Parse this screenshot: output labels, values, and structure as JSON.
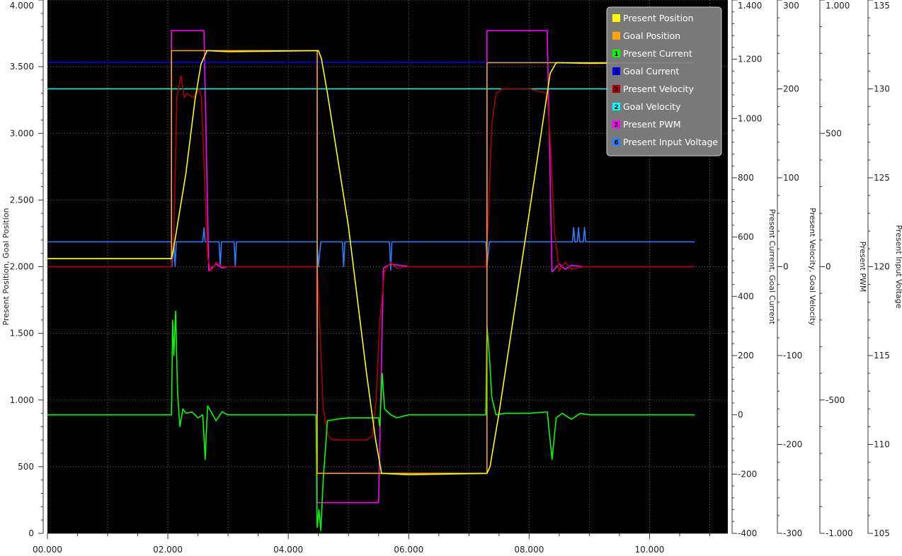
{
  "chart_data": {
    "type": "line",
    "title": "",
    "xlabel": "",
    "xlim": [
      0,
      11.3
    ],
    "x_ticks": [
      "00.000",
      "02.000",
      "04.000",
      "06.000",
      "08.000",
      "10.000"
    ],
    "x_tick_values": [
      0,
      2,
      4,
      6,
      8,
      10
    ],
    "grid": true,
    "legend_position": "top-right",
    "y_axes": [
      {
        "id": "pos",
        "label": "Present Position, Goal Position",
        "side": "left",
        "ylim": [
          0,
          4000
        ],
        "ticks": [
          "0",
          "500",
          "1.000",
          "1.500",
          "2.000",
          "2.500",
          "3.000",
          "3.500",
          "4.000"
        ],
        "tick_values": [
          0,
          500,
          1000,
          1500,
          2000,
          2500,
          3000,
          3500,
          4000
        ]
      },
      {
        "id": "cur",
        "label": "Present Current, Goal Current",
        "side": "right",
        "ylim": [
          -400,
          1400
        ],
        "ticks": [
          "-400",
          "-200",
          "0",
          "200",
          "400",
          "600",
          "800",
          "1.000",
          "1.200",
          "1.400"
        ],
        "tick_values": [
          -400,
          -200,
          0,
          200,
          400,
          600,
          800,
          1000,
          1200,
          1400
        ]
      },
      {
        "id": "vel",
        "label": "Present Velocity, Goal Velocity",
        "side": "right",
        "ylim": [
          -300,
          300
        ],
        "ticks": [
          "-300",
          "-200",
          "-100",
          "0",
          "100",
          "200",
          "300"
        ],
        "tick_values": [
          -300,
          -200,
          -100,
          0,
          100,
          200,
          300
        ]
      },
      {
        "id": "pwm",
        "label": "Present PWM",
        "side": "right",
        "ylim": [
          -1000,
          1000
        ],
        "ticks": [
          "-1.000",
          "-500",
          "0",
          "500",
          "1.000"
        ],
        "tick_values": [
          -1000,
          -500,
          0,
          500,
          1000
        ]
      },
      {
        "id": "volt",
        "label": "Present Input Voltage",
        "side": "right",
        "ylim": [
          105,
          135
        ],
        "ticks": [
          "105",
          "110",
          "115",
          "120",
          "125",
          "130",
          "135"
        ],
        "tick_values": [
          105,
          110,
          115,
          120,
          125,
          130,
          135
        ]
      }
    ],
    "series": [
      {
        "name": "Present Position",
        "axis": "pos",
        "color": "#ffff00",
        "icon_number": "",
        "points": [
          [
            0,
            2060
          ],
          [
            2.06,
            2060
          ],
          [
            2.1,
            2150
          ],
          [
            2.3,
            2700
          ],
          [
            2.45,
            3250
          ],
          [
            2.55,
            3520
          ],
          [
            2.65,
            3620
          ],
          [
            3.0,
            3612
          ],
          [
            4.5,
            3620
          ],
          [
            4.55,
            3560
          ],
          [
            4.65,
            3300
          ],
          [
            5.0,
            2300
          ],
          [
            5.3,
            1200
          ],
          [
            5.45,
            700
          ],
          [
            5.55,
            450
          ],
          [
            6.0,
            440
          ],
          [
            7.3,
            450
          ],
          [
            7.35,
            500
          ],
          [
            7.5,
            900
          ],
          [
            8.0,
            2400
          ],
          [
            8.25,
            3150
          ],
          [
            8.35,
            3450
          ],
          [
            8.45,
            3530
          ],
          [
            9.0,
            3525
          ],
          [
            10.75,
            3530
          ]
        ]
      },
      {
        "name": "Goal Position",
        "axis": "pos",
        "color": "#ffa500",
        "icon_number": "",
        "points": [
          [
            0,
            2060
          ],
          [
            2.06,
            2060
          ],
          [
            2.06,
            3620
          ],
          [
            4.48,
            3620
          ],
          [
            4.48,
            450
          ],
          [
            7.3,
            450
          ],
          [
            7.3,
            3530
          ],
          [
            10.75,
            3530
          ]
        ]
      },
      {
        "name": "Present Current",
        "axis": "cur",
        "color": "#00ff00",
        "icon_number": "1",
        "points": [
          [
            0,
            0
          ],
          [
            2.06,
            0
          ],
          [
            2.08,
            320
          ],
          [
            2.1,
            200
          ],
          [
            2.13,
            350
          ],
          [
            2.16,
            80
          ],
          [
            2.2,
            -40
          ],
          [
            2.25,
            20
          ],
          [
            2.3,
            5
          ],
          [
            2.4,
            10
          ],
          [
            2.5,
            -10
          ],
          [
            2.58,
            0
          ],
          [
            2.62,
            -150
          ],
          [
            2.66,
            30
          ],
          [
            2.72,
            10
          ],
          [
            2.8,
            -20
          ],
          [
            2.9,
            10
          ],
          [
            3.0,
            0
          ],
          [
            4.46,
            0
          ],
          [
            4.48,
            -380
          ],
          [
            4.51,
            -320
          ],
          [
            4.54,
            -390
          ],
          [
            4.58,
            -220
          ],
          [
            4.65,
            -20
          ],
          [
            4.8,
            -15
          ],
          [
            5.0,
            -10
          ],
          [
            5.4,
            -10
          ],
          [
            5.5,
            -10
          ],
          [
            5.52,
            -40
          ],
          [
            5.56,
            140
          ],
          [
            5.6,
            20
          ],
          [
            5.7,
            0
          ],
          [
            5.8,
            -10
          ],
          [
            6.0,
            0
          ],
          [
            7.28,
            0
          ],
          [
            7.3,
            300
          ],
          [
            7.34,
            200
          ],
          [
            7.38,
            60
          ],
          [
            7.45,
            0
          ],
          [
            7.6,
            5
          ],
          [
            8.0,
            5
          ],
          [
            8.3,
            10
          ],
          [
            8.38,
            -150
          ],
          [
            8.45,
            -10
          ],
          [
            8.55,
            5
          ],
          [
            8.7,
            -15
          ],
          [
            8.85,
            5
          ],
          [
            9.0,
            0
          ],
          [
            10.75,
            0
          ]
        ]
      },
      {
        "name": "Goal Current",
        "axis": "cur",
        "color": "#0000ff",
        "icon_number": "1",
        "points": [
          [
            0,
            1190
          ],
          [
            10.75,
            1190
          ]
        ]
      },
      {
        "name": "Present Velocity",
        "axis": "vel",
        "color": "#aa0000",
        "icon_number": "2",
        "points": [
          [
            0,
            0
          ],
          [
            2.06,
            0
          ],
          [
            2.1,
            40
          ],
          [
            2.15,
            190
          ],
          [
            2.22,
            215
          ],
          [
            2.27,
            190
          ],
          [
            2.32,
            195
          ],
          [
            2.42,
            190
          ],
          [
            2.52,
            200
          ],
          [
            2.56,
            190
          ],
          [
            2.62,
            80
          ],
          [
            2.66,
            10
          ],
          [
            2.72,
            -5
          ],
          [
            2.8,
            5
          ],
          [
            2.9,
            0
          ],
          [
            4.48,
            0
          ],
          [
            4.52,
            -60
          ],
          [
            4.58,
            -160
          ],
          [
            4.66,
            -190
          ],
          [
            4.75,
            -195
          ],
          [
            4.9,
            -195
          ],
          [
            5.3,
            -195
          ],
          [
            5.4,
            -190
          ],
          [
            5.46,
            -150
          ],
          [
            5.52,
            -60
          ],
          [
            5.6,
            -5
          ],
          [
            5.7,
            5
          ],
          [
            5.8,
            -2
          ],
          [
            6.0,
            0
          ],
          [
            7.28,
            0
          ],
          [
            7.32,
            50
          ],
          [
            7.38,
            160
          ],
          [
            7.45,
            195
          ],
          [
            7.55,
            200
          ],
          [
            8.0,
            200
          ],
          [
            8.3,
            195
          ],
          [
            8.36,
            130
          ],
          [
            8.42,
            40
          ],
          [
            8.5,
            -5
          ],
          [
            8.6,
            5
          ],
          [
            8.7,
            -3
          ],
          [
            8.9,
            0
          ],
          [
            10.75,
            0
          ]
        ]
      },
      {
        "name": "Goal Velocity",
        "axis": "vel",
        "color": "#00ffff",
        "icon_number": "2",
        "points": [
          [
            0,
            200
          ],
          [
            10.75,
            200
          ]
        ]
      },
      {
        "name": "Present PWM",
        "axis": "pwm",
        "color": "#ff00ff",
        "icon_number": "3",
        "points": [
          [
            0,
            0
          ],
          [
            2.06,
            0
          ],
          [
            2.06,
            885
          ],
          [
            2.6,
            885
          ],
          [
            2.68,
            -15
          ],
          [
            2.8,
            10
          ],
          [
            2.9,
            -5
          ],
          [
            3.0,
            0
          ],
          [
            4.48,
            0
          ],
          [
            4.48,
            -885
          ],
          [
            5.5,
            -885
          ],
          [
            5.58,
            -5
          ],
          [
            5.7,
            10
          ],
          [
            6.0,
            0
          ],
          [
            7.3,
            0
          ],
          [
            7.3,
            885
          ],
          [
            8.3,
            885
          ],
          [
            8.38,
            -20
          ],
          [
            8.5,
            10
          ],
          [
            8.6,
            -10
          ],
          [
            8.7,
            5
          ],
          [
            8.9,
            0
          ],
          [
            10.75,
            0
          ]
        ]
      },
      {
        "name": "Present Input Voltage",
        "axis": "volt",
        "color": "#2b7fff",
        "icon_number": "6",
        "points": [
          [
            0,
            121.4
          ],
          [
            2.06,
            121.4
          ],
          [
            2.07,
            120
          ],
          [
            2.1,
            121.4
          ],
          [
            2.12,
            120
          ],
          [
            2.14,
            121.4
          ],
          [
            2.58,
            121.4
          ],
          [
            2.6,
            122.2
          ],
          [
            2.62,
            121.4
          ],
          [
            2.85,
            121.4
          ],
          [
            2.87,
            120
          ],
          [
            2.89,
            121.4
          ],
          [
            3.1,
            121.4
          ],
          [
            3.12,
            120
          ],
          [
            3.14,
            121.4
          ],
          [
            4.48,
            121.4
          ],
          [
            4.5,
            120
          ],
          [
            4.54,
            121.4
          ],
          [
            4.9,
            121.4
          ],
          [
            4.92,
            120
          ],
          [
            4.94,
            121.4
          ],
          [
            5.68,
            121.4
          ],
          [
            5.7,
            119.8
          ],
          [
            5.72,
            121.4
          ],
          [
            7.28,
            121.4
          ],
          [
            7.3,
            120
          ],
          [
            7.34,
            121.4
          ],
          [
            8.72,
            121.4
          ],
          [
            8.74,
            122.2
          ],
          [
            8.76,
            121.4
          ],
          [
            8.8,
            121.4
          ],
          [
            8.82,
            122.2
          ],
          [
            8.84,
            121.4
          ],
          [
            8.9,
            121.4
          ],
          [
            8.92,
            122.2
          ],
          [
            8.94,
            121.4
          ],
          [
            10.75,
            121.4
          ]
        ]
      }
    ]
  }
}
